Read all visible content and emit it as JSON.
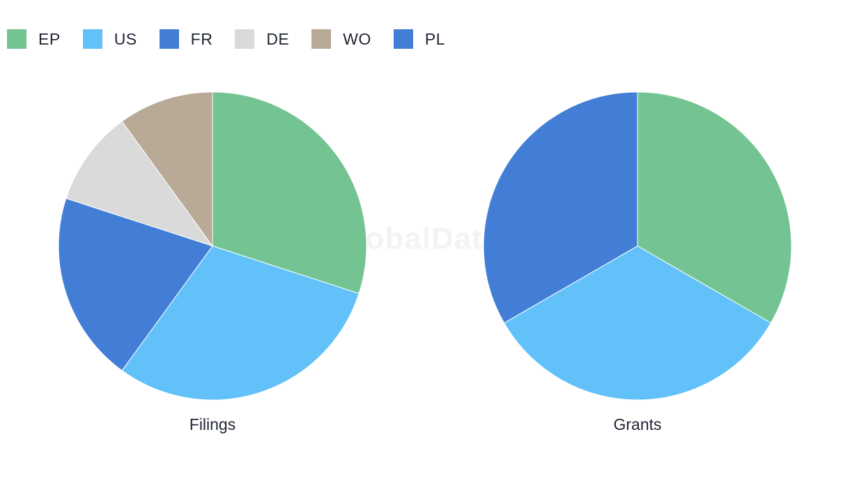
{
  "legend": {
    "items": [
      {
        "label": "EP",
        "color": "#74c493"
      },
      {
        "label": "US",
        "color": "#62c1f9"
      },
      {
        "label": "FR",
        "color": "#427ed6"
      },
      {
        "label": "DE",
        "color": "#dadada"
      },
      {
        "label": "WO",
        "color": "#b8aa97"
      },
      {
        "label": "PL",
        "color": "#427ed6"
      }
    ]
  },
  "watermark": "GlobalData",
  "chart_data": [
    {
      "type": "pie",
      "title": "Filings",
      "labels": [
        "EP",
        "US",
        "FR",
        "DE",
        "WO"
      ],
      "values": [
        30,
        30,
        20,
        10,
        10
      ],
      "colors": [
        "#74c493",
        "#62c1f9",
        "#427ed6",
        "#dadada",
        "#b8aa97"
      ]
    },
    {
      "type": "pie",
      "title": "Grants",
      "labels": [
        "EP",
        "US",
        "PL"
      ],
      "values": [
        1,
        1,
        1
      ],
      "colors": [
        "#74c493",
        "#62c1f9",
        "#427ed6"
      ]
    }
  ]
}
